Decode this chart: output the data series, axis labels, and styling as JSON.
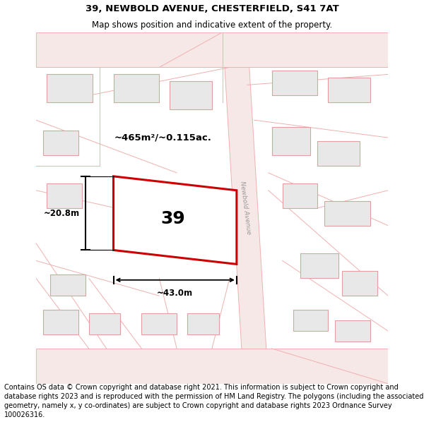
{
  "title_line1": "39, NEWBOLD AVENUE, CHESTERFIELD, S41 7AT",
  "title_line2": "Map shows position and indicative extent of the property.",
  "footer_text": "Contains OS data © Crown copyright and database right 2021. This information is subject to Crown copyright and database rights 2023 and is reproduced with the permission of HM Land Registry. The polygons (including the associated geometry, namely x, y co-ordinates) are subject to Crown copyright and database rights 2023 Ordnance Survey 100026316.",
  "label_39": "39",
  "area_label": "~465m²/~0.115ac.",
  "dim_width": "~43.0m",
  "dim_height": "~20.8m",
  "street_label": "Newbold Avenue",
  "map_bg": "#ffffff",
  "road_fill": "#f7e8e8",
  "road_line": "#f0b0b0",
  "bldg_fill": "#e8e8e8",
  "bldg_line": "#e0a0a0",
  "prop_fill": "#ffffff",
  "prop_edge": "#cc0000",
  "title_fontsize": 9.5,
  "subtitle_fontsize": 8.5,
  "footer_fontsize": 7.0
}
